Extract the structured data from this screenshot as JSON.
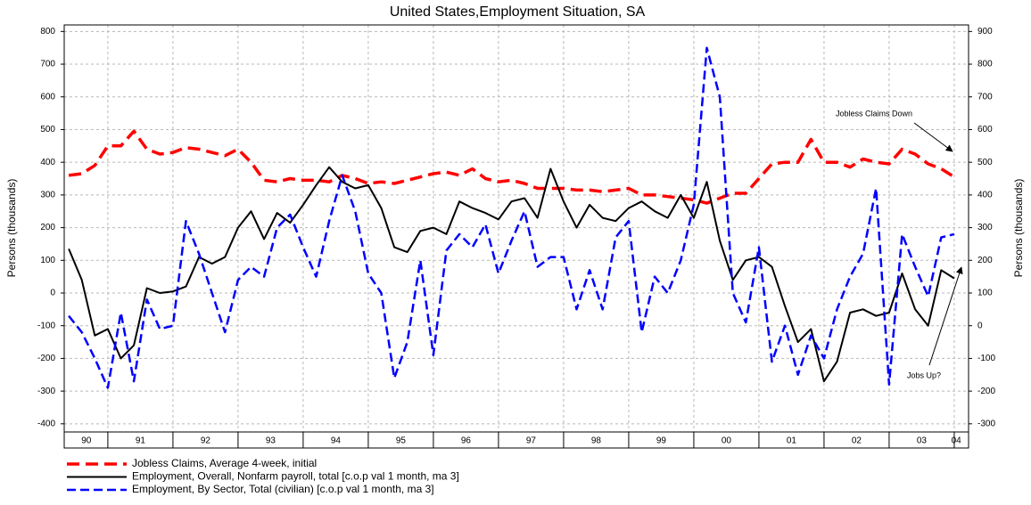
{
  "chart_data": {
    "type": "line",
    "title": "United States,Employment Situation, SA",
    "ylabel": "Persons (thousands)",
    "y2label": "Persons (thousands)",
    "x": [
      1990.4,
      1990.6,
      1990.8,
      1991.0,
      1991.2,
      1991.4,
      1991.6,
      1991.8,
      1992.0,
      1992.2,
      1992.4,
      1992.6,
      1992.8,
      1993.0,
      1993.2,
      1993.4,
      1993.6,
      1993.8,
      1994.0,
      1994.2,
      1994.4,
      1994.6,
      1994.8,
      1995.0,
      1995.2,
      1995.4,
      1995.6,
      1995.8,
      1996.0,
      1996.2,
      1996.4,
      1996.6,
      1996.8,
      1997.0,
      1997.2,
      1997.4,
      1997.6,
      1997.8,
      1998.0,
      1998.2,
      1998.4,
      1998.6,
      1998.8,
      1999.0,
      1999.2,
      1999.4,
      1999.6,
      1999.8,
      2000.0,
      2000.2,
      2000.4,
      2000.6,
      2000.8,
      2001.0,
      2001.2,
      2001.4,
      2001.6,
      2001.8,
      2002.0,
      2002.2,
      2002.4,
      2002.6,
      2002.8,
      2003.0,
      2003.2,
      2003.4,
      2003.6,
      2003.8,
      2004.0
    ],
    "xlim": [
      1990.33,
      2004.22
    ],
    "xticks": [
      {
        "value": 1990.67,
        "label": "90"
      },
      {
        "value": 1991.5,
        "label": "91"
      },
      {
        "value": 1992.5,
        "label": "92"
      },
      {
        "value": 1993.5,
        "label": "93"
      },
      {
        "value": 1994.5,
        "label": "94"
      },
      {
        "value": 1995.5,
        "label": "95"
      },
      {
        "value": 1996.5,
        "label": "96"
      },
      {
        "value": 1997.5,
        "label": "97"
      },
      {
        "value": 1998.5,
        "label": "98"
      },
      {
        "value": 1999.5,
        "label": "99"
      },
      {
        "value": 2000.5,
        "label": "00"
      },
      {
        "value": 2001.5,
        "label": "01"
      },
      {
        "value": 2002.5,
        "label": "02"
      },
      {
        "value": 2003.5,
        "label": "03"
      },
      {
        "value": 2004.03,
        "label": "04"
      }
    ],
    "xgrid": [
      1991,
      1992,
      1993,
      1994,
      1995,
      1996,
      1997,
      1998,
      1999,
      2000,
      2001,
      2002,
      2003,
      2004
    ],
    "ylim": [
      -425,
      820
    ],
    "yticks": [
      -400,
      -300,
      -200,
      -100,
      0,
      100,
      200,
      300,
      400,
      500,
      600,
      700,
      800
    ],
    "y2lim": [
      -325,
      920
    ],
    "y2ticks": [
      -300,
      -200,
      -100,
      0,
      100,
      200,
      300,
      400,
      500,
      600,
      700,
      800,
      900
    ],
    "grid": true,
    "legend": "bottom-left",
    "series": [
      {
        "name": "Jobless Claims, Average 4-week, initial",
        "color": "#ff0000",
        "dash": "dashed",
        "width": 3.5,
        "axis": "y2",
        "values": [
          460,
          465,
          490,
          550,
          550,
          595,
          540,
          525,
          530,
          545,
          540,
          530,
          520,
          540,
          500,
          445,
          440,
          450,
          445,
          445,
          440,
          460,
          450,
          435,
          440,
          435,
          445,
          455,
          465,
          470,
          460,
          480,
          450,
          440,
          445,
          435,
          420,
          420,
          420,
          415,
          415,
          410,
          415,
          420,
          400,
          400,
          395,
          390,
          385,
          375,
          390,
          405,
          405,
          450,
          495,
          500,
          500,
          570,
          500,
          500,
          485,
          510,
          500,
          495,
          540,
          525,
          495,
          480,
          455
        ]
      },
      {
        "name": "Employment, Overall, Nonfarm payroll, total [c.o.p val 1 month, ma 3]",
        "color": "#000000",
        "dash": "solid",
        "width": 2,
        "values": [
          135,
          40,
          -130,
          -110,
          -200,
          -160,
          15,
          0,
          5,
          20,
          110,
          90,
          110,
          200,
          250,
          165,
          245,
          215,
          270,
          330,
          385,
          340,
          320,
          330,
          260,
          140,
          125,
          190,
          200,
          180,
          280,
          260,
          245,
          225,
          280,
          290,
          230,
          380,
          280,
          200,
          270,
          230,
          220,
          260,
          280,
          250,
          230,
          300,
          230,
          340,
          160,
          40,
          100,
          110,
          80,
          -40,
          -150,
          -110,
          -270,
          -210,
          -60,
          -50,
          -70,
          -60,
          60,
          -50,
          -100,
          70,
          45
        ]
      },
      {
        "name": "Employment, By Sector, Total (civilian) [c.o.p val 1 month, ma 3]",
        "color": "#0000ff",
        "dash": "dashed",
        "width": 2.5,
        "values": [
          -70,
          -120,
          -200,
          -290,
          -60,
          -270,
          -20,
          -110,
          -100,
          220,
          120,
          0,
          -120,
          40,
          80,
          50,
          200,
          240,
          140,
          50,
          220,
          360,
          250,
          60,
          0,
          -260,
          -150,
          100,
          -190,
          130,
          180,
          140,
          210,
          60,
          160,
          250,
          80,
          110,
          110,
          -50,
          70,
          -50,
          170,
          220,
          -120,
          50,
          0,
          100,
          270,
          750,
          600,
          0,
          -90,
          140,
          -210,
          -100,
          -250,
          -130,
          -200,
          -50,
          50,
          120,
          320,
          -280,
          180,
          80,
          -10,
          170,
          180
        ]
      }
    ],
    "annotations": [
      "Jobless Claims Down",
      "Jobs Up?"
    ]
  }
}
